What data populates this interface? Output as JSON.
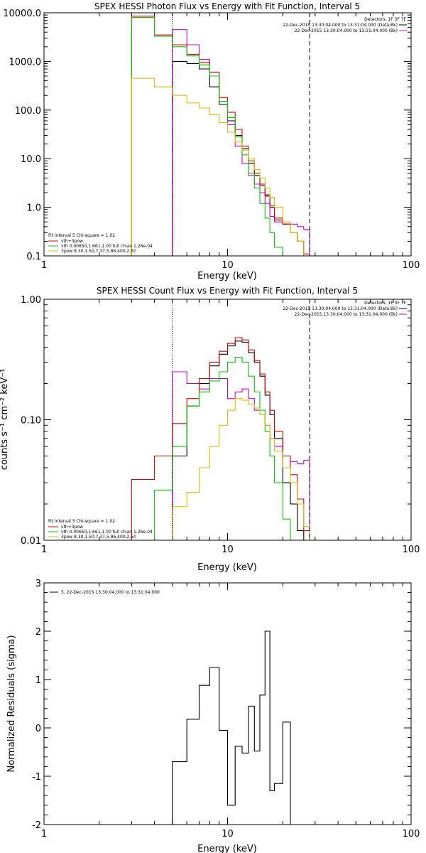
{
  "chart_data": [
    {
      "type": "line",
      "title": "SPEX HESSI Photon Flux vs Energy with Fit Function, Interval 5",
      "xlabel": "Energy (keV)",
      "ylabel": "",
      "xscale": "log",
      "yscale": "log",
      "xlim": [
        1,
        100
      ],
      "ylim": [
        0.1,
        10000
      ],
      "xticks": [
        1,
        10,
        100
      ],
      "xtick_labels": [
        "1",
        "10",
        "100"
      ],
      "yticks": [
        0.1,
        1,
        10,
        100,
        1000,
        10000
      ],
      "ytick_labels": [
        "0.1",
        "1.0",
        "10.0",
        "100.0",
        "1000.0",
        "10000.0"
      ],
      "vlines": [
        {
          "x": 5.0,
          "style": "dotted"
        },
        {
          "x": 28.0,
          "style": "dashed"
        }
      ],
      "info_lines": [
        "Detectors: 1F 3F 7F",
        "22-Dec-2015 13:30:04.000 to 13:31:04.000 (Data-Bk)",
        "22-Dec-2015 13:30:04.000 to 13:31:04.000 (Bk)"
      ],
      "info_colors": [
        "",
        "#000000",
        "#cc00cc"
      ],
      "legend_title": "Fit Interval 5   Chi-square = 1.02",
      "edges": [
        3.0,
        4.0,
        5.0,
        6.0,
        7.0,
        8.0,
        9.0,
        10.0,
        11.0,
        12.0,
        13.0,
        14.0,
        15.0,
        16.0,
        17.0,
        18.0,
        20.0,
        22.0,
        24.0,
        26.0,
        28.0
      ],
      "series": [
        {
          "name": "",
          "color": "#000000",
          "values": [
            0.1,
            0.1,
            1000,
            900,
            700,
            300,
            130,
            60,
            30,
            16,
            8,
            4.5,
            2.8,
            1.7,
            1.0,
            0.55,
            0.45,
            0.3,
            0.2,
            0.1
          ]
        },
        {
          "name": "",
          "color": "#cc00cc",
          "values": [
            0.1,
            0.1,
            4500,
            2200,
            1100,
            500,
            150,
            50,
            18,
            8,
            4.5,
            3,
            2,
            1.2,
            0.65,
            0.5,
            0.45,
            0.45,
            0.4,
            0.35
          ]
        },
        {
          "name": "vth+3pow",
          "color": "#dd0000",
          "values": [
            8500,
            3500,
            2200,
            1400,
            950,
            600,
            180,
            90,
            40,
            18,
            9,
            5,
            3,
            1.8,
            1.1,
            0.6,
            0.45,
            0.3,
            0.2,
            0.11
          ]
        },
        {
          "name": "vth 0.00650,1.661,1.00  full chian 1.26e-04",
          "color": "#00cc00",
          "values": [
            8000,
            3300,
            2000,
            1300,
            850,
            500,
            150,
            70,
            28,
            12,
            5,
            2.5,
            1.2,
            0.6,
            0.3,
            0.15,
            0.1,
            0.1,
            0.1,
            0.1
          ]
        },
        {
          "name": "3pow 8.30,1.50,7.37,5.86,400,2.50",
          "color": "#ddbb00",
          "values": [
            450,
            300,
            200,
            140,
            110,
            80,
            55,
            35,
            22,
            15,
            10,
            6,
            4,
            2.5,
            1.6,
            1.0,
            0.5,
            0.3,
            0.2,
            0.1
          ]
        }
      ]
    },
    {
      "type": "line",
      "title": "SPEX HESSI Count Flux vs Energy with Fit Function, Interval 5",
      "xlabel": "Energy (keV)",
      "ylabel": "counts s⁻¹ cm⁻² keV⁻¹",
      "xscale": "log",
      "yscale": "log",
      "xlim": [
        1,
        100
      ],
      "ylim": [
        0.01,
        1.0
      ],
      "xticks": [
        1,
        10,
        100
      ],
      "xtick_labels": [
        "1",
        "10",
        "100"
      ],
      "yticks": [
        0.01,
        0.1,
        1.0
      ],
      "ytick_labels": [
        "0.01",
        "0.10",
        "1.00"
      ],
      "vlines": [
        {
          "x": 5.0,
          "style": "dotted"
        },
        {
          "x": 28.0,
          "style": "dashed"
        }
      ],
      "info_lines": [
        "Detectors: 1F 3F 7F",
        "22-Dec-2015 13:30:04.000 to 13:31:04.000 (Data-Bk)",
        "22-Dec-2015 13:30:04.000 to 13:31:04.000 (Bk)"
      ],
      "info_colors": [
        "",
        "#000000",
        "#cc00cc"
      ],
      "legend_title": "Fit Interval 5   Chi-square = 1.02",
      "edges": [
        3.0,
        4.0,
        5.0,
        6.0,
        7.0,
        8.0,
        9.0,
        10.0,
        11.0,
        12.0,
        13.0,
        14.0,
        15.0,
        16.0,
        17.0,
        18.0,
        20.0,
        22.0,
        24.0,
        26.0,
        28.0
      ],
      "series": [
        {
          "name": "",
          "color": "#000000",
          "values": [
            0.01,
            0.01,
            0.05,
            0.13,
            0.2,
            0.28,
            0.35,
            0.41,
            0.45,
            0.44,
            0.36,
            0.3,
            0.23,
            0.16,
            0.11,
            0.07,
            0.03,
            0.02,
            0.012,
            0.01
          ]
        },
        {
          "name": "",
          "color": "#cc00cc",
          "values": [
            0.01,
            0.01,
            0.25,
            0.2,
            0.18,
            0.22,
            0.22,
            0.15,
            0.17,
            0.18,
            0.15,
            0.12,
            0.11,
            0.09,
            0.07,
            0.06,
            0.05,
            0.045,
            0.043,
            0.046
          ]
        },
        {
          "name": "vth+3pow",
          "color": "#dd0000",
          "values": [
            0.032,
            0.05,
            0.093,
            0.15,
            0.22,
            0.3,
            0.37,
            0.43,
            0.48,
            0.46,
            0.38,
            0.31,
            0.24,
            0.17,
            0.12,
            0.08,
            0.05,
            0.035,
            0.022,
            0.012
          ]
        },
        {
          "name": "vth 0.00650,1.661,1.00  full chian 1.26e-04",
          "color": "#00cc00",
          "values": [
            0.01,
            0.026,
            0.06,
            0.13,
            0.17,
            0.21,
            0.25,
            0.3,
            0.33,
            0.3,
            0.23,
            0.17,
            0.12,
            0.08,
            0.05,
            0.03,
            0.015,
            0.01,
            0.01,
            0.01
          ]
        },
        {
          "name": "3pow 8.30,1.50,7.37,5.86,400,2.50",
          "color": "#ddbb00",
          "values": [
            0.01,
            0.01,
            0.019,
            0.025,
            0.04,
            0.06,
            0.09,
            0.12,
            0.15,
            0.145,
            0.135,
            0.125,
            0.11,
            0.09,
            0.07,
            0.055,
            0.04,
            0.03,
            0.02,
            0.013
          ]
        }
      ]
    },
    {
      "type": "line",
      "title": "",
      "xlabel": "Energy (keV)",
      "ylabel": "Normalized Residuals (sigma)",
      "xscale": "log",
      "yscale": "linear",
      "xlim": [
        1,
        100
      ],
      "ylim": [
        -2,
        3
      ],
      "xticks": [
        1,
        10,
        100
      ],
      "xtick_labels": [
        "1",
        "10",
        "100"
      ],
      "yticks": [
        -2,
        -1,
        0,
        1,
        2,
        3
      ],
      "ytick_labels": [
        "-2",
        "-1",
        "0",
        "1",
        "2",
        "3"
      ],
      "vlines": [],
      "info_lines": [],
      "legend_title": "",
      "legend_text": "5, 22-Dec-2015 13:30:04.000 to 13:31:04.000",
      "edges": [
        5.0,
        6.0,
        7.0,
        8.0,
        9.0,
        10.0,
        11.0,
        12.0,
        13.0,
        14.0,
        15.0,
        16.0,
        17.0,
        18.0,
        20.0,
        22.0,
        24.0,
        26.0,
        28.0
      ],
      "start_level": -2.5,
      "end_level": -2.5,
      "series": [
        {
          "name": "",
          "color": "#000000",
          "values": [
            -0.7,
            0.18,
            0.88,
            1.25,
            -0.05,
            -1.6,
            -0.38,
            -0.52,
            0.45,
            -0.48,
            0.68,
            2.0,
            -1.3,
            -1.15,
            0.12
          ]
        }
      ]
    }
  ]
}
